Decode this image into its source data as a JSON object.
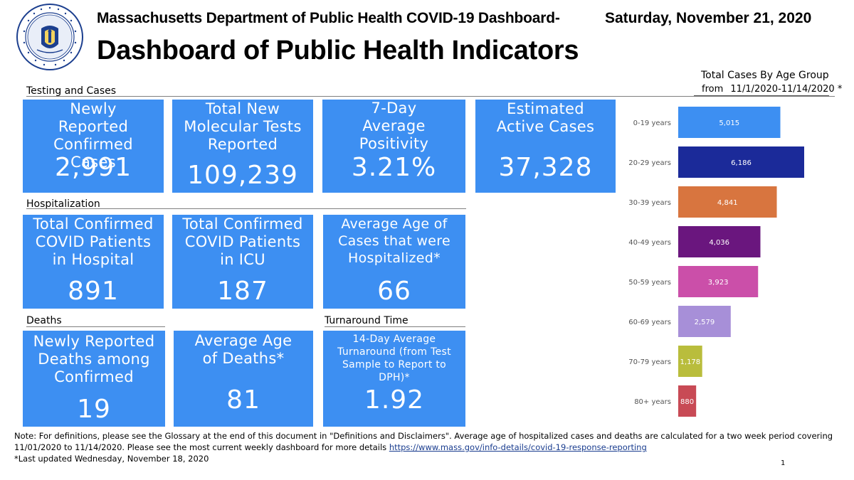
{
  "header": {
    "seal_label": "Commonwealth of Massachusetts Department of Public Health seal",
    "top_title": "Massachusetts Department of Public Health COVID-19 Dashboard-",
    "main_title": "Dashboard of Public Health Indicators",
    "date": "Saturday, November 21, 2020"
  },
  "sections": {
    "testing": "Testing and Cases",
    "hospitalization": "Hospitalization",
    "deaths": "Deaths",
    "turnaround": "Turnaround Time"
  },
  "cards": {
    "new_cases": {
      "label": "Newly Reported Confirmed Cases",
      "value": "2,991"
    },
    "new_tests": {
      "label": "Total New Molecular Tests Reported",
      "value": "109,239"
    },
    "positivity": {
      "label": "7-Day Average Positivity",
      "value": "3.21%"
    },
    "active_cases": {
      "label": "Estimated Active Cases",
      "value": "37,328"
    },
    "hospital": {
      "label": "Total Confirmed COVID Patients in Hospital",
      "value": "891"
    },
    "icu": {
      "label": "Total Confirmed COVID Patients in ICU",
      "value": "187"
    },
    "avg_age_hosp": {
      "label": "Average Age of Cases that were Hospitalized*",
      "value": "66"
    },
    "new_deaths": {
      "label": "Newly Reported Deaths among Confirmed",
      "value": "19"
    },
    "avg_age_deaths": {
      "label": "Average Age of Deaths*",
      "value": "81"
    },
    "turnaround": {
      "label": "14-Day Average Turnaround (from Test Sample to Report to DPH)*",
      "value": "1.92"
    }
  },
  "chart_data": {
    "type": "bar",
    "orientation": "horizontal",
    "title": "Total Cases By Age Group",
    "subtitle_prefix": "from",
    "subtitle_range": "11/1/2020-11/14/2020 *",
    "categories": [
      "0-19 years",
      "20-29 years",
      "30-39 years",
      "40-49 years",
      "50-59 years",
      "60-69 years",
      "70-79 years",
      "80+ years"
    ],
    "values": [
      5015,
      6186,
      4841,
      4036,
      3923,
      2579,
      1178,
      880
    ],
    "value_labels": [
      "5,015",
      "6,186",
      "4,841",
      "4,036",
      "3,923",
      "2,579",
      "1,178",
      "880"
    ],
    "colors": [
      "#3d8ff2",
      "#1b2a99",
      "#d8753f",
      "#6a167e",
      "#cb4fa9",
      "#a78fd8",
      "#b9bd3c",
      "#c84a55"
    ],
    "xlim": [
      0,
      6186
    ],
    "grid": false,
    "legend": "none"
  },
  "note": {
    "text": "Note: For definitions, please see the Glossary at the end of this document in \"Definitions and Disclaimers\". Average age of hospitalized cases and deaths are calculated for a two week period covering 11/01/2020 to 11/14/2020. Please see the most current weekly dashboard for more details",
    "link": "https://www.mass.gov/info-details/covid-19-response-reporting"
  },
  "footnote": "*Last updated Wednesday, November 18, 2020",
  "page_number": "1"
}
